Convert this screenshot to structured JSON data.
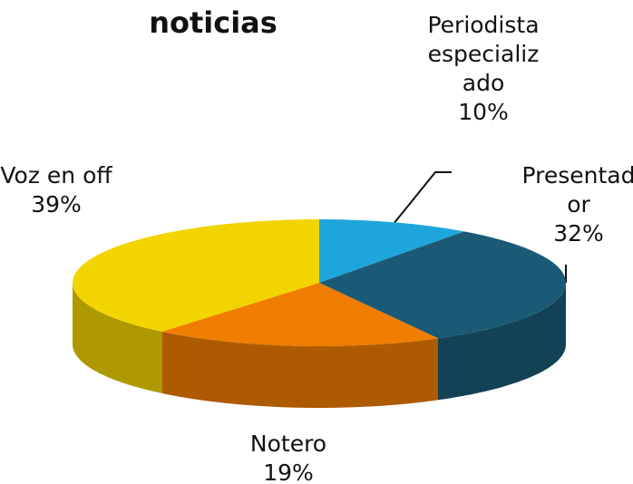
{
  "chart_data": {
    "type": "pie3d",
    "title": "noticias",
    "categories": [
      "Periodista especializado",
      "Presentador",
      "Notero",
      "Voz en off"
    ],
    "values": [
      10,
      32,
      19,
      39
    ],
    "value_labels": [
      "10%",
      "32%",
      "19%",
      "39%"
    ],
    "colors": [
      "#1ea6dc",
      "#1b5a76",
      "#f07d00",
      "#f2d400"
    ]
  }
}
